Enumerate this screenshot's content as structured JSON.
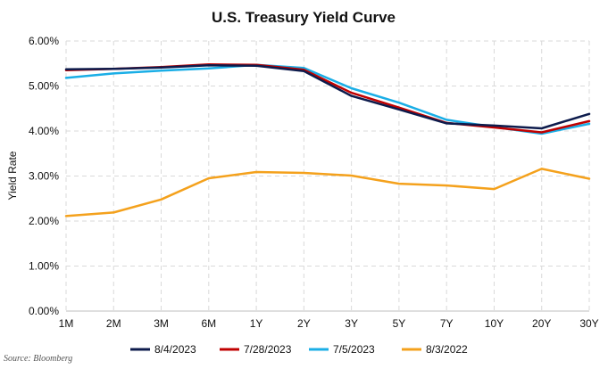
{
  "chart_data": {
    "type": "line",
    "title": "U.S. Treasury Yield Curve",
    "xlabel": "",
    "ylabel": "Yield Rate",
    "categories": [
      "1M",
      "2M",
      "3M",
      "6M",
      "1Y",
      "2Y",
      "3Y",
      "5Y",
      "7Y",
      "10Y",
      "20Y",
      "30Y"
    ],
    "ylim": [
      0,
      6
    ],
    "yticks": [
      "0.00%",
      "1.00%",
      "2.00%",
      "3.00%",
      "4.00%",
      "5.00%",
      "6.00%"
    ],
    "grid": true,
    "legend_position": "bottom",
    "series": [
      {
        "name": "8/4/2023",
        "color": "#0d1b4c",
        "values": [
          5.37,
          5.38,
          5.41,
          5.46,
          5.45,
          5.33,
          4.78,
          4.48,
          4.17,
          4.12,
          4.06,
          4.38
        ]
      },
      {
        "name": "7/28/2023",
        "color": "#c00000",
        "values": [
          5.35,
          5.38,
          5.42,
          5.48,
          5.47,
          5.36,
          4.85,
          4.52,
          4.18,
          4.08,
          3.97,
          4.22
        ]
      },
      {
        "name": "7/5/2023",
        "color": "#1aaee6",
        "values": [
          5.18,
          5.28,
          5.34,
          5.39,
          5.47,
          5.4,
          4.95,
          4.63,
          4.25,
          4.09,
          3.94,
          4.16
        ]
      },
      {
        "name": "8/3/2022",
        "color": "#f4a11c",
        "values": [
          2.11,
          2.19,
          2.48,
          2.95,
          3.09,
          3.07,
          3.01,
          2.83,
          2.79,
          2.71,
          3.16,
          2.94
        ]
      }
    ]
  },
  "source": "Source: Bloomberg"
}
